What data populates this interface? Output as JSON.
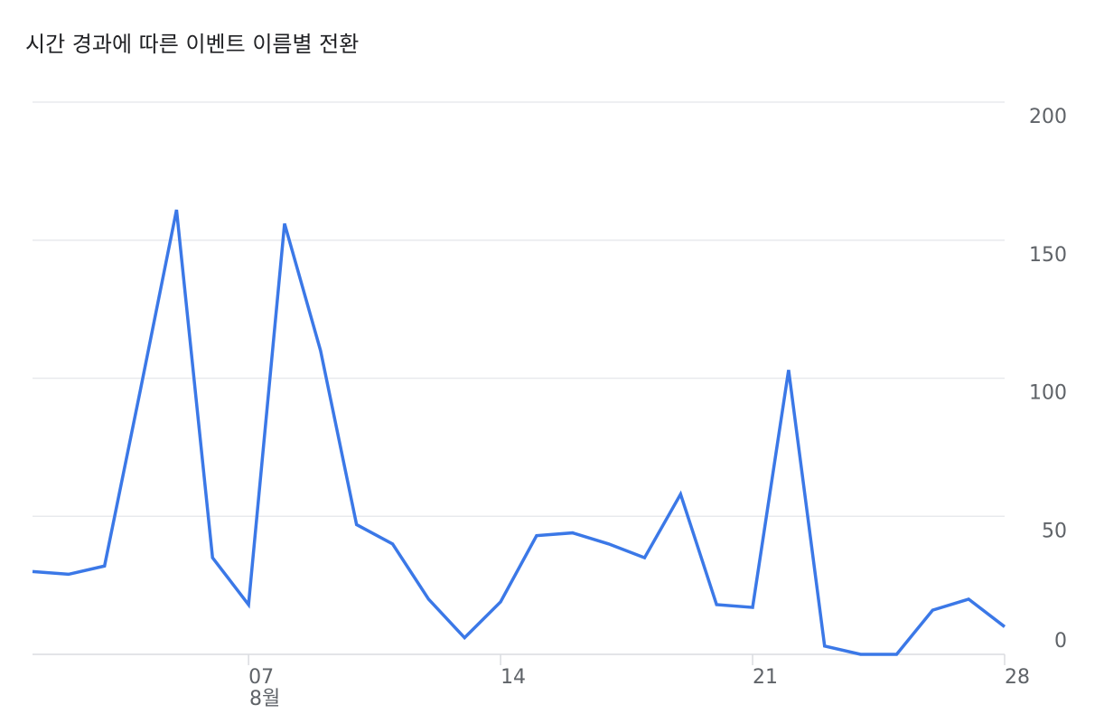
{
  "chart_data": {
    "type": "line",
    "title": "시간 경과에 따른 이벤트 이름별 전환",
    "categories": [
      null,
      null,
      null,
      null,
      null,
      null,
      "07",
      null,
      null,
      null,
      null,
      null,
      null,
      "14",
      null,
      null,
      null,
      null,
      null,
      null,
      "21",
      null,
      null,
      null,
      null,
      null,
      null,
      "28"
    ],
    "month_label": "8월",
    "values": [
      30,
      29,
      32,
      96,
      161,
      35,
      18,
      156,
      110,
      47,
      40,
      20,
      6,
      19,
      43,
      44,
      40,
      35,
      58,
      18,
      17,
      103,
      3,
      0,
      0,
      16,
      20,
      10
    ],
    "color": "#3b78e7",
    "ylim": [
      0,
      200
    ],
    "yticks": [
      0,
      50,
      100,
      150,
      200
    ],
    "grid": true
  }
}
